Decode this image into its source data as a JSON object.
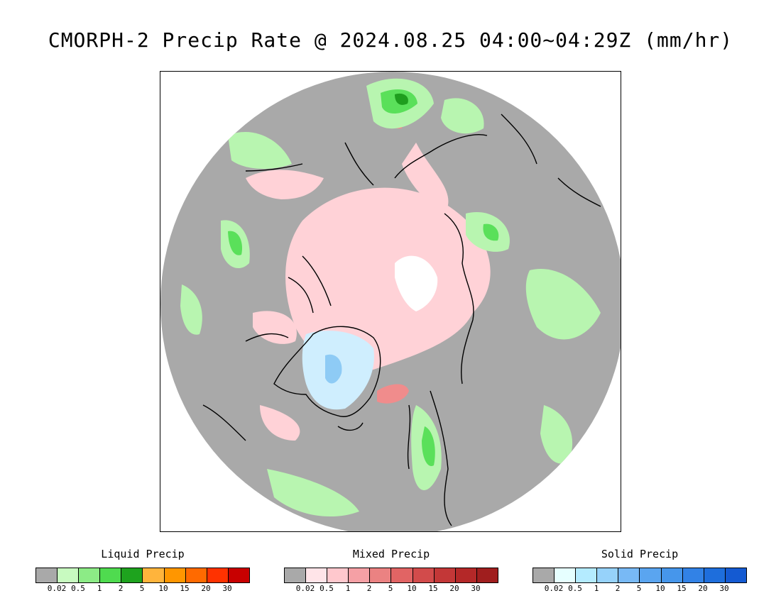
{
  "title": "CMORPH-2 Precip Rate @ 2024.08.25 04:00~04:29Z (mm/hr)",
  "map": {
    "projection": "north polar stereographic",
    "colors": {
      "no_precip": "#a9a9a9",
      "liquid_light": "#b8f5b0",
      "liquid_mid": "#5ae05a",
      "liquid_heavy": "#1e9e1e",
      "mixed_light": "#ffd2d7",
      "mixed_mid": "#f08c8c",
      "solid_light": "#cfeefe",
      "solid_mid": "#8ecbf5",
      "coastline": "#000000"
    }
  },
  "legends": [
    {
      "title": "Liquid Precip",
      "colors": [
        "#a9a9a9",
        "#c8fac0",
        "#8ceb86",
        "#4fdb4f",
        "#1ea31e",
        "#ffb43c",
        "#ff9600",
        "#ff6a00",
        "#ff3200",
        "#c80000"
      ],
      "ticks": [
        "0.02",
        "0.5",
        "1",
        "2",
        "5",
        "10",
        "15",
        "20",
        "30"
      ]
    },
    {
      "title": "Mixed Precip",
      "colors": [
        "#a9a9a9",
        "#ffe4e8",
        "#ffc8cd",
        "#f5a0a5",
        "#eb8282",
        "#e16464",
        "#d24b4b",
        "#c33737",
        "#b42828",
        "#a01e1e"
      ],
      "ticks": [
        "0.02",
        "0.5",
        "1",
        "2",
        "5",
        "10",
        "15",
        "20",
        "30"
      ]
    },
    {
      "title": "Solid Precip",
      "colors": [
        "#a9a9a9",
        "#e6ffff",
        "#b4ebff",
        "#96d2fa",
        "#78b9f5",
        "#5aa5f0",
        "#4696eb",
        "#3282e6",
        "#1e6edc",
        "#145ad2"
      ],
      "ticks": [
        "0.02",
        "0.5",
        "1",
        "2",
        "5",
        "10",
        "15",
        "20",
        "30"
      ]
    }
  ]
}
